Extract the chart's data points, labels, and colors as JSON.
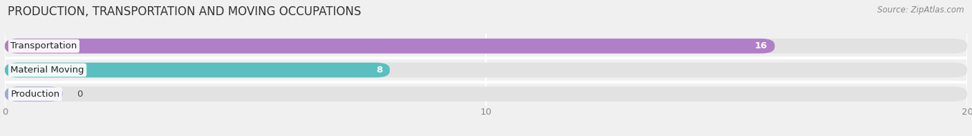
{
  "title": "PRODUCTION, TRANSPORTATION AND MOVING OCCUPATIONS",
  "source": "Source: ZipAtlas.com",
  "categories": [
    "Transportation",
    "Material Moving",
    "Production"
  ],
  "values": [
    16,
    8,
    0
  ],
  "bar_colors": [
    "#b07fc7",
    "#5bbfbf",
    "#a0a8d8"
  ],
  "xlim": [
    0,
    20
  ],
  "xticks": [
    0,
    10,
    20
  ],
  "bar_height": 0.62,
  "background_color": "#f0f0f0",
  "bar_bg_color": "#e2e2e2",
  "title_fontsize": 12,
  "label_fontsize": 9.5,
  "value_fontsize": 9.5,
  "source_fontsize": 8.5,
  "stub_value": 1.2
}
